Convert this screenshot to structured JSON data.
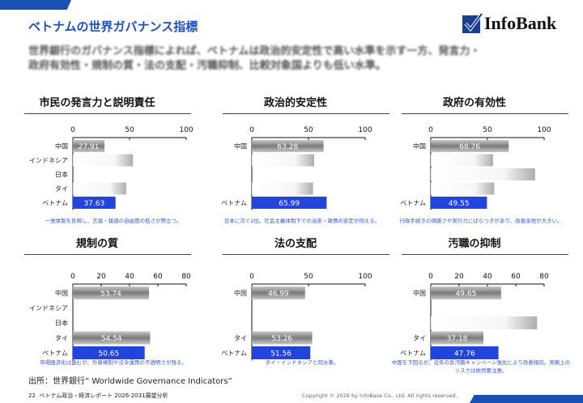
{
  "header": {
    "title": "ベトナムの世界ガバナンス指標",
    "logo_text": "InfoBank",
    "subtitle_lines": [
      "世界銀行のガバナンス指標によれば、ベトナムは政治的安定性で高い水準を示す一方、発言力・",
      "政府有効性・規制の質・法の支配・汚職抑制、比較対象国よりも低い水準。"
    ]
  },
  "colors": {
    "brand": "#1a4fb4",
    "vietnam": "#2244dd",
    "other": "#8a8a8a",
    "note": "#3355cc"
  },
  "chart_data": [
    {
      "type": "bar",
      "title": "市民の発言力と説明責任",
      "categories": [
        "中国",
        "インドネシア",
        "日本",
        "タイ",
        "ベトナム"
      ],
      "values": [
        27.91,
        53,
        null,
        47,
        37.63
      ],
      "labels": [
        "27.91",
        "",
        "",
        "",
        "37.63"
      ],
      "ticks": [
        0,
        50,
        100
      ],
      "xlim": [
        0,
        100
      ],
      "note": "一党体制を反映し、言論・報道の自由度の低さが際立つ。"
    },
    {
      "type": "bar",
      "title": "政治的安定性",
      "categories": [
        "中国",
        "",
        "",
        "",
        "ベトナム"
      ],
      "values": [
        63.28,
        55,
        null,
        54,
        65.99
      ],
      "labels": [
        "63.28",
        "",
        "",
        "",
        "65.99"
      ],
      "ticks": [
        0,
        50,
        100
      ],
      "xlim": [
        0,
        100
      ],
      "note": "日本に次ぐ2位。社会主義体制下での治安・政情の安定が伺える。"
    },
    {
      "type": "bar",
      "title": "政府の有効性",
      "categories": [
        "中国",
        "",
        "",
        "",
        "ベトナム"
      ],
      "values": [
        68.76,
        55,
        92,
        56,
        49.55
      ],
      "labels": [
        "68.76",
        "",
        "",
        "",
        "49.55"
      ],
      "ticks": [
        0,
        50,
        100
      ],
      "xlim": [
        0,
        100
      ],
      "note": "行政手続きの煩雑さや実行力にばらつきがあり、改善余地が大きい。"
    },
    {
      "type": "bar",
      "title": "規制の質",
      "categories": [
        "中国",
        "インドネシア",
        "日本",
        "タイ",
        "ベトナム"
      ],
      "values": [
        53.74,
        null,
        null,
        54.54,
        50.65
      ],
      "labels": [
        "53.74",
        "",
        "",
        "54.54",
        "50.65"
      ],
      "ticks": [
        0,
        20,
        40,
        60,
        80
      ],
      "xlim": [
        0,
        80
      ],
      "note": "市場経済化は進むが、外資規制や法令運用の不透明さが残る。"
    },
    {
      "type": "bar",
      "title": "法の支配",
      "categories": [
        "中国",
        "",
        "",
        "タイ",
        "ベトナム"
      ],
      "values": [
        46.99,
        null,
        null,
        53.26,
        51.56
      ],
      "labels": [
        "46.99",
        "",
        "",
        "53.26",
        "51.56"
      ],
      "ticks": [
        0,
        50,
        100
      ],
      "xlim": [
        0,
        100
      ],
      "note": "タイ・インドネシアと同水準。"
    },
    {
      "type": "bar",
      "title": "汚職の抑制",
      "categories": [
        "中国",
        "",
        "",
        "タイ",
        "ベトナム"
      ],
      "values": [
        49.65,
        null,
        75,
        37.18,
        47.76
      ],
      "labels": [
        "49.65",
        "",
        "",
        "37.18",
        "47.76"
      ],
      "ticks": [
        0,
        20,
        40,
        60,
        80
      ],
      "xlim": [
        0,
        80
      ],
      "note": "中国を下回るが、近年の反汚職キャンペーン強化により改善傾向。実務上のリスクは依然要注意。"
    }
  ],
  "footer": {
    "source": "出所：世界銀行” Worldwide Governance Indicators”",
    "page": "22",
    "report": "ベトナム政治・経済レポート 2026-2031展望分析",
    "copyright": "Copyright © 2026 by InfoBase Co., Ltd. All rights reserved."
  }
}
